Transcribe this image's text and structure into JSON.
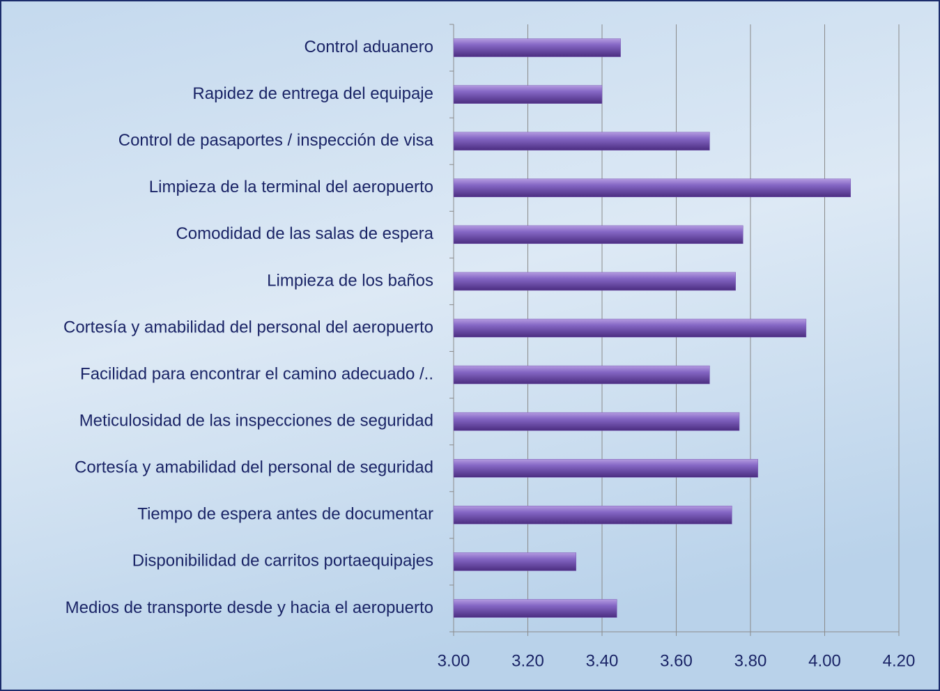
{
  "chart_data": {
    "type": "barh",
    "categories": [
      "Control aduanero",
      "Rapidez de entrega del equipaje",
      "Control de pasaportes / inspección de visa",
      "Limpieza de la terminal del aeropuerto",
      "Comodidad de las salas de espera",
      "Limpieza de los baños",
      "Cortesía y amabilidad del personal del aeropuerto",
      "Facilidad para encontrar el camino adecuado /..",
      "Meticulosidad de las inspecciones de seguridad",
      "Cortesía y amabilidad del personal de seguridad",
      "Tiempo de espera antes de documentar",
      "Disponibilidad de carritos portaequipajes",
      "Medios de transporte desde y hacia el aeropuerto"
    ],
    "values": [
      3.45,
      3.4,
      3.69,
      4.07,
      3.78,
      3.76,
      3.95,
      3.69,
      3.77,
      3.82,
      3.75,
      3.33,
      3.44
    ],
    "color": "#7a5bb5",
    "xlim": [
      3.0,
      4.2
    ],
    "xticks": [
      {
        "value": 3.0,
        "label": "3.00"
      },
      {
        "value": 3.2,
        "label": "3.20"
      },
      {
        "value": 3.4,
        "label": "3.40"
      },
      {
        "value": 3.6,
        "label": "3.60"
      },
      {
        "value": 3.8,
        "label": "3.80"
      },
      {
        "value": 4.0,
        "label": "4.00"
      },
      {
        "value": 4.2,
        "label": "4.20"
      }
    ],
    "grid": true
  }
}
